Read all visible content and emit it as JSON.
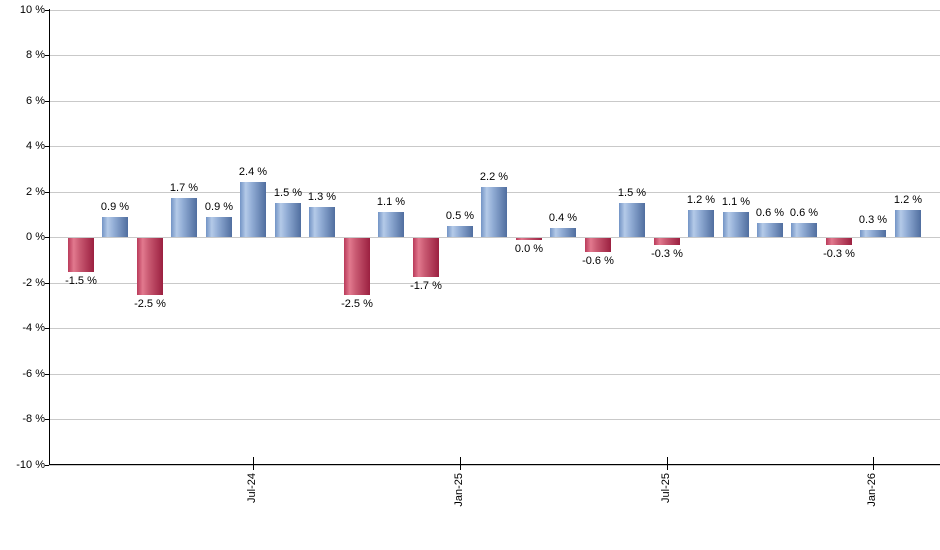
{
  "chart_data": {
    "type": "bar",
    "title": "",
    "description": "Monthly percent returns bar chart, blue for gains and red for losses",
    "unit": "%",
    "bars": [
      {
        "value": -1.5,
        "label": "-1.5 %",
        "color": "negative"
      },
      {
        "value": 0.9,
        "label": "0.9 %",
        "color": "positive"
      },
      {
        "value": -2.5,
        "label": "-2.5 %",
        "color": "negative"
      },
      {
        "value": 1.7,
        "label": "1.7 %",
        "color": "positive"
      },
      {
        "value": 0.9,
        "label": "0.9 %",
        "color": "positive"
      },
      {
        "value": 2.4,
        "label": "2.4 %",
        "color": "positive"
      },
      {
        "value": 1.5,
        "label": "1.5 %",
        "color": "positive"
      },
      {
        "value": 1.3,
        "label": "1.3 %",
        "color": "positive"
      },
      {
        "value": -2.5,
        "label": "-2.5 %",
        "color": "negative"
      },
      {
        "value": 1.1,
        "label": "1.1 %",
        "color": "positive"
      },
      {
        "value": -1.7,
        "label": "-1.7 %",
        "color": "negative"
      },
      {
        "value": 0.5,
        "label": "0.5 %",
        "color": "positive"
      },
      {
        "value": 2.2,
        "label": "2.2 %",
        "color": "positive"
      },
      {
        "value": 0.0,
        "label": "0.0 %",
        "color": "negative"
      },
      {
        "value": 0.4,
        "label": "0.4 %",
        "color": "positive"
      },
      {
        "value": -0.6,
        "label": "-0.6 %",
        "color": "negative"
      },
      {
        "value": 1.5,
        "label": "1.5 %",
        "color": "positive"
      },
      {
        "value": -0.3,
        "label": "-0.3 %",
        "color": "negative"
      },
      {
        "value": 1.2,
        "label": "1.2 %",
        "color": "positive"
      },
      {
        "value": 1.1,
        "label": "1.1 %",
        "color": "positive"
      },
      {
        "value": 0.6,
        "label": "0.6 %",
        "color": "positive"
      },
      {
        "value": 0.6,
        "label": "0.6 %",
        "color": "positive"
      },
      {
        "value": -0.3,
        "label": "-0.3 %",
        "color": "negative"
      },
      {
        "value": 0.3,
        "label": "0.3 %",
        "color": "positive"
      },
      {
        "value": 1.2,
        "label": "1.2 %",
        "color": "positive"
      }
    ],
    "x_ticks": [
      {
        "bar_index": 5,
        "label": "Jul-24"
      },
      {
        "bar_index": 11,
        "label": "Jan-25"
      },
      {
        "bar_index": 17,
        "label": "Jul-25"
      },
      {
        "bar_index": 23,
        "label": "Jan-26"
      }
    ],
    "y_ticks": [
      {
        "value": 10,
        "label": "10 %"
      },
      {
        "value": 8,
        "label": "8 %"
      },
      {
        "value": 6,
        "label": "6 %"
      },
      {
        "value": 4,
        "label": "4 %"
      },
      {
        "value": 2,
        "label": "2 %"
      },
      {
        "value": 0,
        "label": "0 %"
      },
      {
        "value": -2,
        "label": "-2 %"
      },
      {
        "value": -4,
        "label": "-4 %"
      },
      {
        "value": -6,
        "label": "-6 %"
      },
      {
        "value": -8,
        "label": "-8 %"
      },
      {
        "value": -10,
        "label": "-10 %"
      }
    ],
    "ylim": [
      -10,
      10
    ],
    "grid": true,
    "legend": "none",
    "colors": {
      "positive": "#6d8fc4",
      "negative": "#bf3a5e",
      "gridline": "#c9c9c9",
      "axis": "#000000",
      "text": "#000000",
      "background": "#ffffff"
    }
  }
}
